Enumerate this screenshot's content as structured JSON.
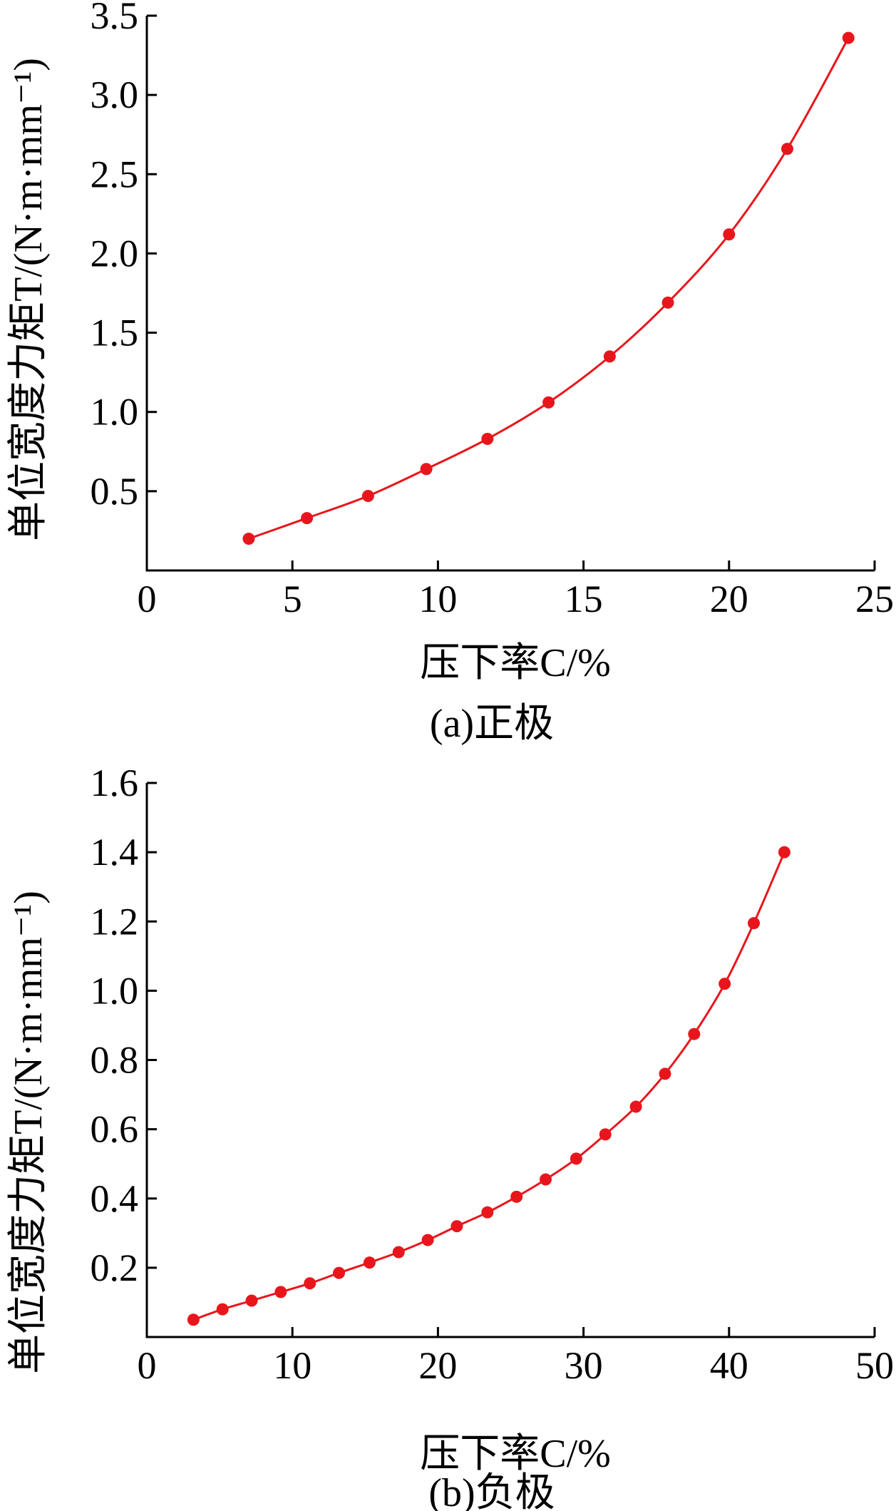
{
  "colors": {
    "series": "#e8161c",
    "axis": "#000000"
  },
  "chart_data": [
    {
      "type": "line",
      "caption": "(a)正极",
      "xlabel": "压下率C/%",
      "ylabel": "单位宽度力矩T/(N·m·mm⁻¹)",
      "xlim": [
        0,
        25
      ],
      "ylim": [
        0,
        3.5
      ],
      "xticks": [
        0,
        5,
        10,
        15,
        20,
        25
      ],
      "xtick_labels": [
        "0",
        "5",
        "10",
        "15",
        "20",
        "25"
      ],
      "yticks": [
        0.5,
        1.0,
        1.5,
        2.0,
        2.5,
        3.0,
        3.5
      ],
      "ytick_labels": [
        "0.5",
        "1.0",
        "1.5",
        "2.0",
        "2.5",
        "3.0",
        "3.5"
      ],
      "grid": false,
      "x": [
        3.5,
        5.5,
        7.6,
        9.6,
        11.7,
        13.8,
        15.9,
        17.9,
        20.0,
        22.0,
        24.1
      ],
      "y": [
        0.2,
        0.33,
        0.47,
        0.64,
        0.83,
        1.06,
        1.35,
        1.69,
        2.12,
        2.66,
        3.36
      ]
    },
    {
      "type": "line",
      "caption": "(b)负极",
      "xlabel": "压下率C/%",
      "ylabel": "单位宽度力矩T/(N·m·mm⁻¹)",
      "xlim": [
        0,
        50
      ],
      "ylim": [
        0,
        1.6
      ],
      "xticks": [
        0,
        10,
        20,
        30,
        40,
        50
      ],
      "xtick_labels": [
        "0",
        "10",
        "20",
        "30",
        "40",
        "50"
      ],
      "yticks": [
        0.2,
        0.4,
        0.6,
        0.8,
        1.0,
        1.2,
        1.4,
        1.6
      ],
      "ytick_labels": [
        "0.2",
        "0.4",
        "0.6",
        "0.8",
        "1.0",
        "1.2",
        "1.4",
        "1.6"
      ],
      "grid": false,
      "x": [
        3.2,
        5.2,
        7.2,
        9.2,
        11.2,
        13.2,
        15.3,
        17.3,
        19.3,
        21.3,
        23.4,
        25.4,
        27.4,
        29.5,
        31.5,
        33.6,
        35.6,
        37.6,
        39.7,
        41.7,
        43.8
      ],
      "y": [
        0.05,
        0.08,
        0.105,
        0.13,
        0.155,
        0.185,
        0.215,
        0.245,
        0.28,
        0.32,
        0.36,
        0.405,
        0.455,
        0.515,
        0.585,
        0.665,
        0.76,
        0.875,
        1.02,
        1.195,
        1.4
      ]
    }
  ]
}
